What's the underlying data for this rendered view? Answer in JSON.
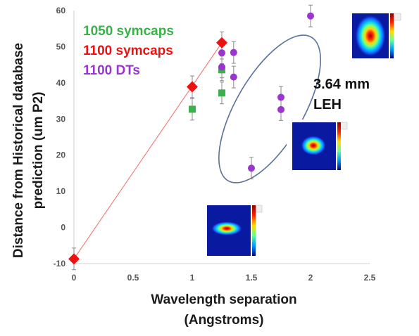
{
  "chart_data": {
    "type": "scatter",
    "xlabel_lines": [
      "Wavelength separation",
      "(Angstroms)"
    ],
    "ylabel_lines": [
      "Distance from Historical database",
      "prediction (um P2)"
    ],
    "xlim": [
      0,
      2.5
    ],
    "ylim": [
      -10,
      60
    ],
    "x_ticks": [
      "0",
      "0.5",
      "1",
      "1.5",
      "2",
      "2.5"
    ],
    "y_ticks": [
      "-10",
      "0",
      "10",
      "20",
      "30",
      "40",
      "50",
      "60"
    ],
    "grid": false,
    "legend_position": "top-left",
    "series": [
      {
        "name": "1050 symcaps",
        "color": "#3cb04a",
        "marker": "square",
        "points": [
          {
            "x": 1.0,
            "y": 32.7,
            "err": 3
          },
          {
            "x": 1.25,
            "y": 37.2,
            "err": 3
          },
          {
            "x": 1.25,
            "y": 43.6,
            "err": 3
          }
        ]
      },
      {
        "name": "1100 symcaps",
        "color": "#ee1111",
        "marker": "diamond",
        "points": [
          {
            "x": 0.0,
            "y": -8.7,
            "err": 3
          },
          {
            "x": 1.0,
            "y": 38.9,
            "err": 3
          },
          {
            "x": 1.25,
            "y": 51.1,
            "err": 3
          }
        ]
      },
      {
        "name": "1100 DTs",
        "color": "#9b35cf",
        "marker": "circle",
        "points": [
          {
            "x": 1.25,
            "y": 44.4,
            "err": 3
          },
          {
            "x": 1.25,
            "y": 48.3,
            "err": 3
          },
          {
            "x": 1.35,
            "y": 48.4,
            "err": 3
          },
          {
            "x": 1.35,
            "y": 41.6,
            "err": 3
          },
          {
            "x": 1.5,
            "y": 16.4,
            "err": 3
          },
          {
            "x": 1.75,
            "y": 36.0,
            "err": 3
          },
          {
            "x": 1.75,
            "y": 32.6,
            "err": 3
          },
          {
            "x": 2.0,
            "y": 58.5,
            "err": 3
          }
        ]
      }
    ],
    "trend_line": {
      "color": "#f08080",
      "from": [
        0.0,
        -8.7
      ],
      "to": [
        1.25,
        51.1
      ]
    },
    "annotation_lines": [
      "3.64 mm",
      "LEH"
    ],
    "ellipse_color": "#5a6f9a"
  }
}
